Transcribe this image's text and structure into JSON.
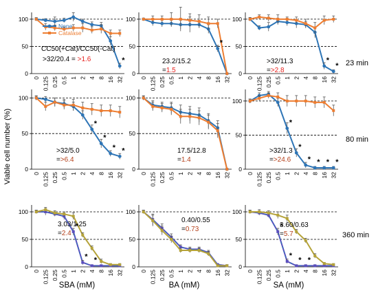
{
  "figure": {
    "y_axis_label": "Viable cell number (%)",
    "x_tick_labels": [
      "0",
      "0.125",
      "0.25",
      "0.5",
      "1",
      "2",
      "4",
      "8",
      "16",
      "32"
    ],
    "y_ticks": [
      "0",
      "50",
      "100"
    ],
    "row_labels": [
      "23 min",
      "80 min",
      "360 min"
    ],
    "column_xlabels": [
      "SBA (mM)",
      "BA (mM)",
      "SA (mM)"
    ],
    "legend": {
      "series": [
        "None",
        "Catalase"
      ]
    }
  },
  "colors": {
    "none": "#2e75b6",
    "catalase": "#ed7d31",
    "olive": "#b5a33a",
    "purple": "#5b4fbf",
    "red": "#e8231f",
    "brown": "#b5411b"
  },
  "chart_data": [
    {
      "type": "line",
      "panel": "SBA 23 min",
      "x": [
        0,
        0.125,
        0.25,
        0.5,
        1,
        2,
        4,
        8,
        16,
        32
      ],
      "ylim": [
        0,
        110
      ],
      "series": [
        {
          "name": "None",
          "values": [
            100,
            98,
            96,
            98,
            104,
            96,
            90,
            88,
            60,
            14
          ],
          "err": [
            3,
            3,
            8,
            4,
            8,
            4,
            5,
            6,
            8,
            5
          ]
        },
        {
          "name": "Catalase",
          "values": [
            100,
            86,
            84,
            82,
            84,
            84,
            80,
            82,
            74,
            74
          ],
          "err": [
            2,
            6,
            5,
            4,
            6,
            8,
            6,
            8,
            6,
            6
          ]
        }
      ],
      "significant_points": [
        9
      ],
      "annotation": ">32/20.4",
      "annotation_ratio": ">1.6",
      "annotation_header": "CC50(+Cat)/CC50(-Cat)"
    },
    {
      "type": "line",
      "panel": "BA 23 min",
      "x": [
        0,
        0.125,
        0.25,
        0.5,
        1,
        2,
        4,
        8,
        16,
        32
      ],
      "ylim": [
        0,
        110
      ],
      "series": [
        {
          "name": "None",
          "values": [
            100,
            94,
            92,
            92,
            90,
            90,
            90,
            82,
            46,
            0
          ],
          "err": [
            2,
            6,
            6,
            6,
            8,
            14,
            6,
            8,
            6,
            0
          ]
        },
        {
          "name": "Catalase",
          "values": [
            100,
            100,
            100,
            100,
            100,
            98,
            96,
            92,
            92,
            0
          ],
          "err": [
            2,
            6,
            6,
            12,
            22,
            12,
            12,
            12,
            8,
            0
          ]
        }
      ],
      "significant_points": [
        8
      ],
      "annotation": "23.2/15.2",
      "annotation_ratio": "1.5"
    },
    {
      "type": "line",
      "panel": "SA 23 min",
      "x": [
        0,
        0.125,
        0.25,
        0.5,
        1,
        2,
        4,
        8,
        16,
        32
      ],
      "ylim": [
        0,
        110
      ],
      "series": [
        {
          "name": "None",
          "values": [
            100,
            84,
            86,
            96,
            94,
            92,
            90,
            76,
            14,
            4
          ],
          "err": [
            3,
            4,
            8,
            6,
            6,
            8,
            6,
            10,
            6,
            3
          ]
        },
        {
          "name": "Catalase",
          "values": [
            100,
            104,
            102,
            100,
            100,
            98,
            92,
            84,
            98,
            100
          ],
          "err": [
            3,
            4,
            6,
            8,
            4,
            6,
            8,
            10,
            8,
            6
          ]
        }
      ],
      "significant_points": [
        8,
        9
      ],
      "annotation": ">32/11.3",
      "annotation_ratio": ">2.8"
    },
    {
      "type": "line",
      "panel": "SBA 80 min",
      "x": [
        0,
        0.125,
        0.25,
        0.5,
        1,
        2,
        4,
        8,
        16,
        32
      ],
      "ylim": [
        0,
        110
      ],
      "series": [
        {
          "name": "None",
          "values": [
            100,
            98,
            94,
            92,
            88,
            76,
            56,
            36,
            22,
            18
          ],
          "err": [
            3,
            4,
            6,
            6,
            6,
            6,
            6,
            6,
            4,
            4
          ]
        },
        {
          "name": "Catalase",
          "values": [
            100,
            88,
            94,
            90,
            90,
            86,
            84,
            82,
            82,
            80
          ],
          "err": [
            3,
            6,
            6,
            6,
            8,
            8,
            8,
            8,
            8,
            8
          ]
        }
      ],
      "significant_points": [
        6,
        7,
        8,
        9
      ],
      "annotation": ">32/5.0",
      "annotation_ratio": ">6.4"
    },
    {
      "type": "line",
      "panel": "BA 80 min",
      "x": [
        0,
        0.125,
        0.25,
        0.5,
        1,
        2,
        4,
        8,
        16,
        32
      ],
      "ylim": [
        0,
        110
      ],
      "series": [
        {
          "name": "None",
          "values": [
            100,
            90,
            88,
            86,
            80,
            78,
            76,
            68,
            58,
            0
          ],
          "err": [
            3,
            6,
            6,
            8,
            10,
            10,
            10,
            10,
            10,
            0
          ]
        },
        {
          "name": "Catalase",
          "values": [
            100,
            88,
            86,
            84,
            74,
            74,
            72,
            66,
            54,
            0
          ],
          "err": [
            3,
            6,
            6,
            8,
            10,
            10,
            10,
            10,
            10,
            0
          ]
        }
      ],
      "significant_points": [],
      "annotation": "17.5/12.8",
      "annotation_ratio": "1.4"
    },
    {
      "type": "line",
      "panel": "SA 80 min",
      "x": [
        0,
        0.125,
        0.25,
        0.5,
        1,
        2,
        4,
        8,
        16,
        32
      ],
      "ylim": [
        0,
        115
      ],
      "series": [
        {
          "name": "None",
          "values": [
            100,
            108,
            110,
            98,
            60,
            24,
            6,
            2,
            2,
            2
          ],
          "err": [
            3,
            4,
            4,
            6,
            8,
            6,
            4,
            2,
            2,
            2
          ]
        },
        {
          "name": "Catalase",
          "values": [
            100,
            104,
            108,
            106,
            100,
            100,
            100,
            98,
            98,
            86
          ],
          "err": [
            3,
            4,
            4,
            6,
            8,
            8,
            8,
            8,
            8,
            8
          ]
        }
      ],
      "significant_points": [
        4,
        5,
        6,
        7,
        8,
        9
      ],
      "annotation": ">32/1.3",
      "annotation_ratio": ">24.6"
    },
    {
      "type": "line",
      "panel": "SBA 360 min",
      "x": [
        0,
        0.125,
        0.25,
        0.5,
        1,
        2,
        4,
        8,
        16,
        32
      ],
      "ylim": [
        0,
        110
      ],
      "series": [
        {
          "name": "None",
          "values": [
            100,
            100,
            96,
            92,
            64,
            8,
            2,
            2,
            2,
            2
          ],
          "err": [
            3,
            6,
            4,
            6,
            6,
            4,
            2,
            2,
            2,
            2
          ]
        },
        {
          "name": "Catalase",
          "values": [
            100,
            104,
            98,
            96,
            92,
            58,
            34,
            10,
            4,
            4
          ],
          "err": [
            3,
            4,
            4,
            4,
            6,
            4,
            4,
            4,
            2,
            2
          ]
        }
      ],
      "significant_points": [
        4,
        5,
        6
      ],
      "annotation": "3.03/1.25",
      "annotation_ratio": "2.4"
    },
    {
      "type": "line",
      "panel": "BA 360 min",
      "x": [
        0,
        0.125,
        0.25,
        0.5,
        1,
        2,
        4,
        8,
        16,
        32
      ],
      "ylim": [
        0,
        110
      ],
      "series": [
        {
          "name": "None",
          "values": [
            100,
            86,
            70,
            54,
            36,
            32,
            32,
            26,
            4,
            2
          ],
          "err": [
            3,
            10,
            8,
            6,
            4,
            4,
            4,
            4,
            2,
            2
          ]
        },
        {
          "name": "Catalase",
          "values": [
            100,
            84,
            66,
            50,
            30,
            30,
            30,
            24,
            2,
            2
          ],
          "err": [
            3,
            10,
            8,
            6,
            4,
            4,
            4,
            4,
            2,
            2
          ]
        }
      ],
      "significant_points": [],
      "annotation": "0.40/0.55",
      "annotation_ratio": "0.73"
    },
    {
      "type": "line",
      "panel": "SA 360 min",
      "x": [
        0,
        0.125,
        0.25,
        0.5,
        1,
        2,
        4,
        8,
        16,
        32
      ],
      "ylim": [
        0,
        110
      ],
      "series": [
        {
          "name": "None",
          "values": [
            100,
            98,
            94,
            64,
            10,
            2,
            2,
            2,
            2,
            2
          ],
          "err": [
            3,
            4,
            4,
            6,
            4,
            2,
            2,
            2,
            2,
            2
          ]
        },
        {
          "name": "Catalase",
          "values": [
            100,
            100,
            98,
            94,
            88,
            64,
            48,
            20,
            6,
            4
          ],
          "err": [
            3,
            4,
            4,
            6,
            6,
            4,
            4,
            4,
            2,
            2
          ]
        }
      ],
      "significant_points": [
        3,
        4,
        5,
        6
      ],
      "annotation": "3.60/0.63",
      "annotation_ratio": "5.7"
    }
  ]
}
